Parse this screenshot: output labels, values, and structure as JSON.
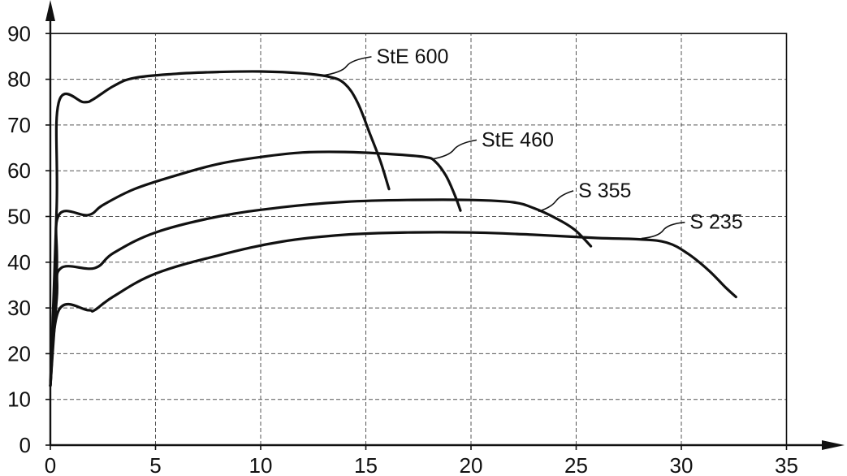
{
  "chart_data": {
    "type": "line",
    "title": "",
    "xlabel": "",
    "ylabel": "",
    "xlim": [
      0,
      35
    ],
    "ylim": [
      0,
      90
    ],
    "xticks": [
      0,
      5,
      10,
      15,
      20,
      25,
      30,
      35
    ],
    "yticks": [
      0,
      10,
      20,
      30,
      40,
      50,
      60,
      70,
      80,
      90
    ],
    "grid": true,
    "legend": "inline-labels",
    "series": [
      {
        "name": "StE 600",
        "label_at": [
          15.5,
          83.5
        ],
        "anchor": [
          12.9,
          80.8
        ],
        "points": [
          [
            0,
            13
          ],
          [
            0.3,
            52
          ],
          [
            0.4,
            75
          ],
          [
            1.6,
            75
          ],
          [
            2,
            75.5
          ],
          [
            3,
            78.5
          ],
          [
            4,
            80.3
          ],
          [
            6,
            81.2
          ],
          [
            8,
            81.6
          ],
          [
            10,
            81.7
          ],
          [
            12,
            81.3
          ],
          [
            13.3,
            80.5
          ],
          [
            14,
            79
          ],
          [
            14.6,
            75
          ],
          [
            15.2,
            68
          ],
          [
            15.7,
            62
          ],
          [
            16.1,
            56
          ]
        ]
      },
      {
        "name": "StE 460",
        "label_at": [
          20.5,
          65.3
        ],
        "anchor": [
          18.1,
          62.5
        ],
        "points": [
          [
            0,
            13
          ],
          [
            0.3,
            38
          ],
          [
            0.4,
            50.3
          ],
          [
            1.8,
            50.3
          ],
          [
            2.5,
            52.5
          ],
          [
            4,
            56
          ],
          [
            6,
            59
          ],
          [
            8,
            61.5
          ],
          [
            10,
            63
          ],
          [
            12,
            64
          ],
          [
            14,
            64.1
          ],
          [
            16,
            63.7
          ],
          [
            17.8,
            63
          ],
          [
            18.3,
            62
          ],
          [
            18.8,
            59
          ],
          [
            19.2,
            55
          ],
          [
            19.5,
            51.3
          ]
        ]
      },
      {
        "name": "S 355",
        "label_at": [
          25.1,
          54.2
        ],
        "anchor": [
          23.2,
          51.1
        ],
        "points": [
          [
            0,
            13
          ],
          [
            0.3,
            32
          ],
          [
            0.5,
            38.7
          ],
          [
            2.1,
            38.7
          ],
          [
            3,
            42
          ],
          [
            5,
            46.5
          ],
          [
            8,
            50
          ],
          [
            11,
            52
          ],
          [
            14,
            53.2
          ],
          [
            17,
            53.6
          ],
          [
            20,
            53.6
          ],
          [
            22,
            53.1
          ],
          [
            23,
            51.8
          ],
          [
            24,
            49.7
          ],
          [
            24.9,
            47.2
          ],
          [
            25.7,
            43.5
          ]
        ]
      },
      {
        "name": "S 235",
        "label_at": [
          30.4,
          47.3
        ],
        "anchor": [
          28.1,
          45.2
        ],
        "points": [
          [
            0,
            13
          ],
          [
            0.4,
            29.5
          ],
          [
            1.8,
            29.5
          ],
          [
            2.1,
            29.5
          ],
          [
            3,
            32.5
          ],
          [
            5,
            37.5
          ],
          [
            8,
            41.5
          ],
          [
            11,
            44.5
          ],
          [
            14,
            46
          ],
          [
            17,
            46.5
          ],
          [
            20,
            46.5
          ],
          [
            23,
            46
          ],
          [
            26,
            45.3
          ],
          [
            28,
            45
          ],
          [
            29.3,
            44.3
          ],
          [
            30.3,
            41.9
          ],
          [
            31.3,
            38.2
          ],
          [
            32.1,
            34.5
          ],
          [
            32.6,
            32.4
          ]
        ]
      }
    ]
  }
}
